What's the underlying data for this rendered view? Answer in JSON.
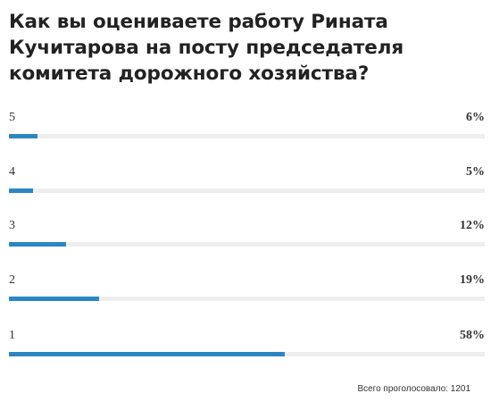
{
  "poll": {
    "title": "Как вы оцениваете работу Рината Кучитарова на посту председателя комитета дорожного хозяйства?",
    "options": [
      {
        "label": "5",
        "percent_text": "6%",
        "share": 0.06
      },
      {
        "label": "4",
        "percent_text": "5%",
        "share": 0.05
      },
      {
        "label": "3",
        "percent_text": "12%",
        "share": 0.12
      },
      {
        "label": "2",
        "percent_text": "19%",
        "share": 0.19
      },
      {
        "label": "1",
        "percent_text": "58%",
        "share": 0.58
      }
    ],
    "total_votes": "Всего проголосовало: 1201",
    "bar_color": "#2b87c4",
    "track_color": "#eeeeee"
  }
}
